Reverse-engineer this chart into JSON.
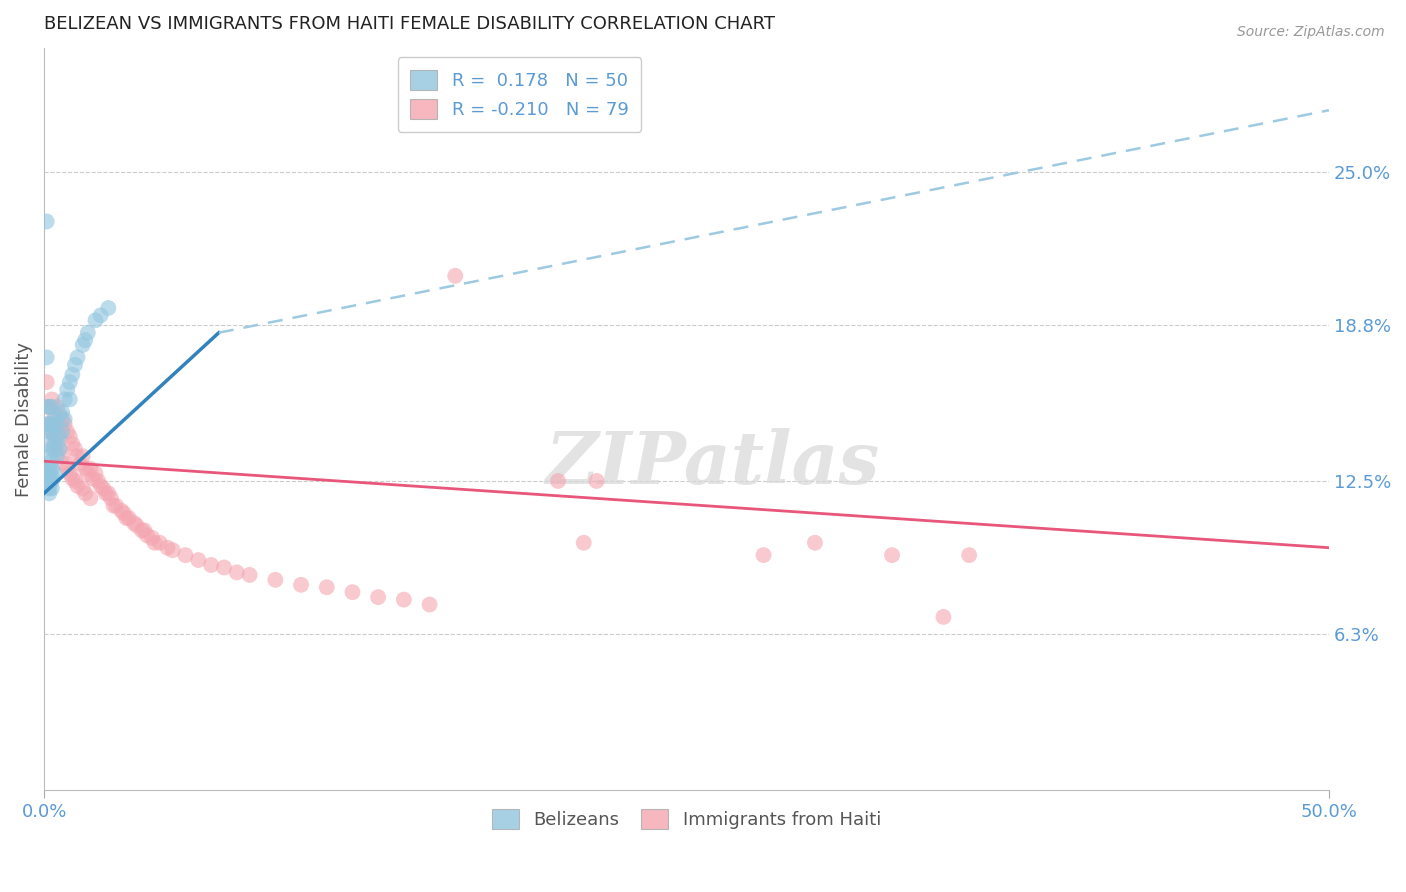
{
  "title": "BELIZEAN VS IMMIGRANTS FROM HAITI FEMALE DISABILITY CORRELATION CHART",
  "source": "Source: ZipAtlas.com",
  "ylabel": "Female Disability",
  "right_ytick_vals": [
    0.25,
    0.188,
    0.125,
    0.063
  ],
  "right_ytick_labels": [
    "25.0%",
    "18.8%",
    "12.5%",
    "6.3%"
  ],
  "xlim": [
    0.0,
    0.5
  ],
  "ylim": [
    0.0,
    0.3
  ],
  "belizean_color": "#92c5de",
  "haiti_color": "#f4a5b0",
  "trendline_belizean_solid_color": "#3182bd",
  "trendline_belizean_dashed_color": "#9ecae1",
  "trendline_haiti_color": "#e8567a",
  "watermark": "ZIPatlas",
  "tick_color": "#5b9bd5",
  "belizean_x": [
    0.001,
    0.001,
    0.001,
    0.001,
    0.001,
    0.002,
    0.002,
    0.002,
    0.002,
    0.002,
    0.002,
    0.002,
    0.002,
    0.002,
    0.002,
    0.003,
    0.003,
    0.003,
    0.003,
    0.003,
    0.003,
    0.003,
    0.003,
    0.003,
    0.004,
    0.004,
    0.004,
    0.004,
    0.005,
    0.005,
    0.005,
    0.006,
    0.006,
    0.006,
    0.007,
    0.007,
    0.008,
    0.008,
    0.009,
    0.01,
    0.01,
    0.011,
    0.012,
    0.013,
    0.015,
    0.016,
    0.017,
    0.02,
    0.022,
    0.025
  ],
  "belizean_y": [
    0.23,
    0.175,
    0.155,
    0.148,
    0.13,
    0.155,
    0.148,
    0.145,
    0.14,
    0.135,
    0.13,
    0.128,
    0.125,
    0.122,
    0.12,
    0.155,
    0.148,
    0.145,
    0.138,
    0.133,
    0.13,
    0.127,
    0.125,
    0.122,
    0.15,
    0.143,
    0.138,
    0.128,
    0.148,
    0.14,
    0.135,
    0.152,
    0.143,
    0.138,
    0.153,
    0.145,
    0.158,
    0.15,
    0.162,
    0.165,
    0.158,
    0.168,
    0.172,
    0.175,
    0.18,
    0.182,
    0.185,
    0.19,
    0.192,
    0.195
  ],
  "haiti_x": [
    0.001,
    0.002,
    0.002,
    0.003,
    0.003,
    0.004,
    0.004,
    0.005,
    0.005,
    0.006,
    0.006,
    0.007,
    0.007,
    0.008,
    0.008,
    0.009,
    0.009,
    0.01,
    0.01,
    0.011,
    0.011,
    0.012,
    0.012,
    0.013,
    0.013,
    0.014,
    0.015,
    0.015,
    0.016,
    0.016,
    0.017,
    0.018,
    0.018,
    0.019,
    0.02,
    0.021,
    0.022,
    0.023,
    0.024,
    0.025,
    0.026,
    0.027,
    0.028,
    0.03,
    0.031,
    0.032,
    0.033,
    0.035,
    0.036,
    0.038,
    0.039,
    0.04,
    0.042,
    0.043,
    0.045,
    0.048,
    0.05,
    0.055,
    0.06,
    0.065,
    0.07,
    0.075,
    0.08,
    0.09,
    0.1,
    0.11,
    0.12,
    0.13,
    0.14,
    0.15,
    0.16,
    0.2,
    0.21,
    0.215,
    0.28,
    0.3,
    0.33,
    0.35,
    0.36
  ],
  "haiti_y": [
    0.165,
    0.155,
    0.148,
    0.158,
    0.145,
    0.152,
    0.14,
    0.155,
    0.143,
    0.148,
    0.138,
    0.15,
    0.135,
    0.148,
    0.132,
    0.145,
    0.13,
    0.143,
    0.128,
    0.14,
    0.126,
    0.138,
    0.125,
    0.135,
    0.123,
    0.132,
    0.135,
    0.122,
    0.13,
    0.12,
    0.128,
    0.13,
    0.118,
    0.126,
    0.128,
    0.125,
    0.123,
    0.122,
    0.12,
    0.12,
    0.118,
    0.115,
    0.115,
    0.113,
    0.112,
    0.11,
    0.11,
    0.108,
    0.107,
    0.105,
    0.105,
    0.103,
    0.102,
    0.1,
    0.1,
    0.098,
    0.097,
    0.095,
    0.093,
    0.091,
    0.09,
    0.088,
    0.087,
    0.085,
    0.083,
    0.082,
    0.08,
    0.078,
    0.077,
    0.075,
    0.208,
    0.125,
    0.1,
    0.125,
    0.095,
    0.1,
    0.095,
    0.07,
    0.095
  ],
  "bel_trendline_x0": 0.0,
  "bel_trendline_y0": 0.12,
  "bel_trendline_x1": 0.068,
  "bel_trendline_y1": 0.185,
  "bel_trendline_ext_x1": 0.5,
  "bel_trendline_ext_y1": 0.275,
  "hai_trendline_x0": 0.0,
  "hai_trendline_y0": 0.133,
  "hai_trendline_x1": 0.5,
  "hai_trendline_y1": 0.098
}
